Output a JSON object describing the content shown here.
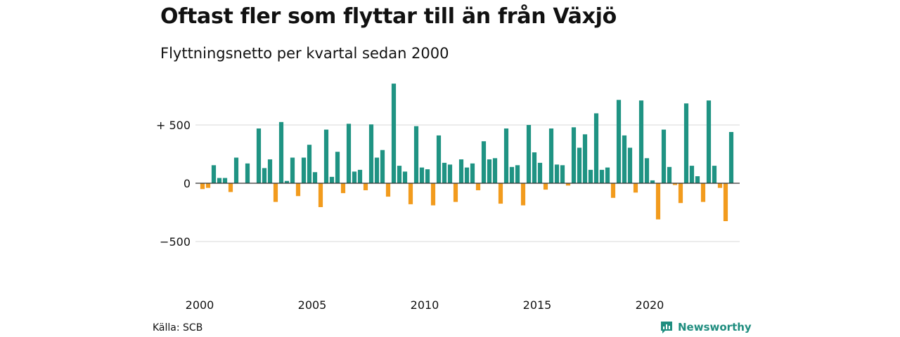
{
  "title": "Oftast fler som flyttar till än från Växjö",
  "subtitle": "Flyttningsnetto per kvartal sedan 2000",
  "source": "Källa: SCB",
  "brand": {
    "name": "Newsworthy",
    "icon": "newsworthy-logo-icon"
  },
  "colors": {
    "positive": "#1f9383",
    "negative": "#f29b1d",
    "grid": "#d9d9d9",
    "zero_line": "#333333",
    "brand": "#1f8d7f"
  },
  "chart_data": {
    "type": "bar",
    "start_year": 2000,
    "periods_per_year": 4,
    "ylim": [
      -800,
      900
    ],
    "y_ticks": [
      {
        "value": 500,
        "label": "+ 500"
      },
      {
        "value": 0,
        "label": "0"
      },
      {
        "value": -500,
        "label": "−500"
      }
    ],
    "x_ticks": [
      "2000",
      "2005",
      "2010",
      "2015",
      "2020"
    ],
    "values": [
      -50,
      -40,
      155,
      45,
      45,
      -75,
      220,
      0,
      170,
      0,
      470,
      130,
      205,
      -160,
      525,
      20,
      220,
      -110,
      220,
      330,
      95,
      -205,
      460,
      55,
      270,
      -85,
      510,
      100,
      115,
      -60,
      505,
      220,
      285,
      -115,
      855,
      150,
      100,
      -180,
      490,
      135,
      120,
      -190,
      410,
      175,
      160,
      -160,
      205,
      135,
      170,
      -60,
      360,
      205,
      215,
      -175,
      470,
      140,
      155,
      -190,
      500,
      265,
      175,
      -55,
      470,
      160,
      155,
      -20,
      480,
      305,
      420,
      115,
      600,
      115,
      135,
      -125,
      715,
      410,
      305,
      -80,
      710,
      215,
      25,
      -310,
      460,
      140,
      -15,
      -170,
      685,
      150,
      60,
      -160,
      710,
      150,
      -40,
      -325,
      440
    ]
  }
}
